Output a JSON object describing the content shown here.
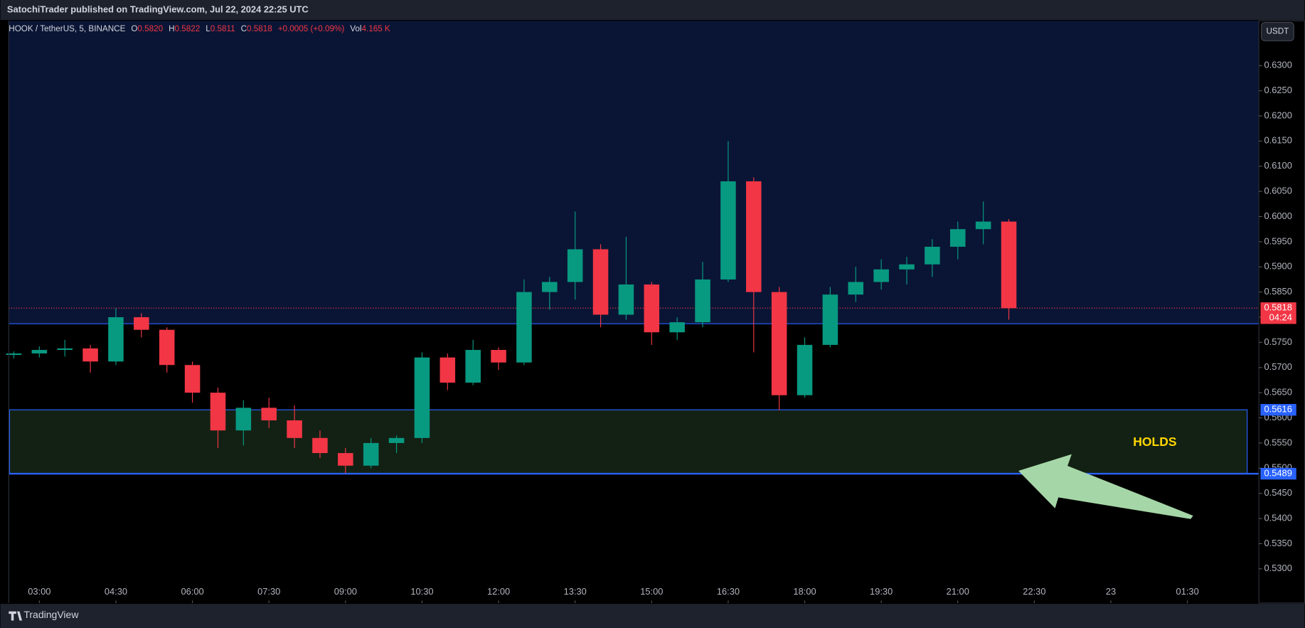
{
  "header": {
    "publisher": "SatochiTrader published on TradingView.com, Jul 22, 2024 22:25 UTC"
  },
  "footer": {
    "brand": "TradingView"
  },
  "currency_button": "USDT",
  "legend": {
    "symbol": "HOOK / TetherUS, 5, BINANCE",
    "o_label": "O",
    "open": "0.5820",
    "h_label": "H",
    "high": "0.5822",
    "l_label": "L",
    "low": "0.5811",
    "c_label": "C",
    "close": "0.5818",
    "change": "+0.0005 (+0.09%)",
    "vol_label": "Vol",
    "volume": "4.165 K"
  },
  "chart_data": {
    "type": "candlestick",
    "up_color": "#089981",
    "down_color": "#f23645",
    "x": [
      2.5,
      3.0,
      3.5,
      4.0,
      4.5,
      5.0,
      5.5,
      6.0,
      6.5,
      7.0,
      7.5,
      8.0,
      8.5,
      9.0,
      9.5,
      10.0,
      10.5,
      11.0,
      11.5,
      12.0,
      12.5,
      13.0,
      13.5,
      14.0,
      14.5,
      15.0,
      15.5,
      16.0,
      16.5,
      17.0,
      17.5,
      18.0,
      18.5,
      19.0,
      19.5,
      20.0,
      20.5,
      21.0,
      21.5,
      22.0
    ],
    "open": [
      0.5725,
      0.5728,
      0.5735,
      0.5738,
      0.5712,
      0.58,
      0.5775,
      0.5705,
      0.565,
      0.5575,
      0.562,
      0.5595,
      0.556,
      0.553,
      0.5505,
      0.555,
      0.556,
      0.572,
      0.567,
      0.5735,
      0.571,
      0.585,
      0.587,
      0.5935,
      0.5805,
      0.5865,
      0.577,
      0.579,
      0.5875,
      0.607,
      0.585,
      0.5645,
      0.5745,
      0.5845,
      0.587,
      0.5895,
      0.5905,
      0.594,
      0.5975,
      0.599
    ],
    "high": [
      0.5732,
      0.5742,
      0.5755,
      0.5745,
      0.5818,
      0.5808,
      0.578,
      0.5712,
      0.566,
      0.5635,
      0.564,
      0.5625,
      0.5575,
      0.554,
      0.556,
      0.5565,
      0.573,
      0.5728,
      0.5755,
      0.574,
      0.5875,
      0.588,
      0.601,
      0.5945,
      0.596,
      0.587,
      0.58,
      0.591,
      0.615,
      0.6078,
      0.586,
      0.576,
      0.586,
      0.59,
      0.5915,
      0.592,
      0.5955,
      0.599,
      0.603,
      0.5995
    ],
    "low": [
      0.5718,
      0.572,
      0.5722,
      0.569,
      0.5705,
      0.576,
      0.569,
      0.563,
      0.554,
      0.5545,
      0.558,
      0.554,
      0.552,
      0.549,
      0.55,
      0.553,
      0.555,
      0.5655,
      0.5665,
      0.5695,
      0.5705,
      0.5815,
      0.5835,
      0.578,
      0.5795,
      0.5745,
      0.5755,
      0.578,
      0.587,
      0.573,
      0.5615,
      0.564,
      0.574,
      0.583,
      0.5855,
      0.5865,
      0.588,
      0.5915,
      0.5945,
      0.5795
    ],
    "close": [
      0.5728,
      0.5735,
      0.5738,
      0.5712,
      0.58,
      0.5775,
      0.5705,
      0.565,
      0.5575,
      0.562,
      0.5595,
      0.556,
      0.553,
      0.5505,
      0.555,
      0.556,
      0.572,
      0.567,
      0.5735,
      0.571,
      0.585,
      0.587,
      0.5935,
      0.5805,
      0.5865,
      0.577,
      0.579,
      0.5875,
      0.607,
      0.585,
      0.5645,
      0.5745,
      0.5845,
      0.587,
      0.5895,
      0.5905,
      0.594,
      0.5975,
      0.599,
      0.5818
    ],
    "xlim": [
      2.4,
      26.9
    ],
    "xticks": [
      {
        "value": 3,
        "label": "03:00"
      },
      {
        "value": 4.5,
        "label": "04:30"
      },
      {
        "value": 6,
        "label": "06:00"
      },
      {
        "value": 7.5,
        "label": "07:30"
      },
      {
        "value": 9,
        "label": "09:00"
      },
      {
        "value": 10.5,
        "label": "10:30"
      },
      {
        "value": 12,
        "label": "12:00"
      },
      {
        "value": 13.5,
        "label": "13:30"
      },
      {
        "value": 15,
        "label": "15:00"
      },
      {
        "value": 16.5,
        "label": "16:30"
      },
      {
        "value": 18,
        "label": "18:00"
      },
      {
        "value": 19.5,
        "label": "19:30"
      },
      {
        "value": 21,
        "label": "21:00"
      },
      {
        "value": 22.5,
        "label": "22:30"
      },
      {
        "value": 24,
        "label": "23"
      },
      {
        "value": 25.5,
        "label": "01:30"
      }
    ],
    "ylim": [
      0.5232,
      0.6389
    ],
    "yticks": [
      {
        "value": 0.53,
        "label": "0.5300"
      },
      {
        "value": 0.535,
        "label": "0.5350"
      },
      {
        "value": 0.54,
        "label": "0.5400"
      },
      {
        "value": 0.545,
        "label": "0.5450"
      },
      {
        "value": 0.55,
        "label": "0.5500"
      },
      {
        "value": 0.555,
        "label": "0.5550"
      },
      {
        "value": 0.56,
        "label": "0.5600"
      },
      {
        "value": 0.565,
        "label": "0.5650"
      },
      {
        "value": 0.57,
        "label": "0.5700"
      },
      {
        "value": 0.575,
        "label": "0.5750"
      },
      {
        "value": 0.58,
        "label": "0.5800"
      },
      {
        "value": 0.585,
        "label": "0.5850"
      },
      {
        "value": 0.59,
        "label": "0.5900"
      },
      {
        "value": 0.595,
        "label": "0.5950"
      },
      {
        "value": 0.6,
        "label": "0.6000"
      },
      {
        "value": 0.605,
        "label": "0.6050"
      },
      {
        "value": 0.61,
        "label": "0.6100"
      },
      {
        "value": 0.615,
        "label": "0.6150"
      },
      {
        "value": 0.62,
        "label": "0.6200"
      },
      {
        "value": 0.625,
        "label": "0.6250"
      },
      {
        "value": 0.63,
        "label": "0.6300"
      }
    ],
    "level_line": 0.5787,
    "last_price": 0.5818,
    "countdown": "04:24",
    "zone": {
      "top": 0.5616,
      "bottom": 0.5489
    },
    "annotation": "HOLDS"
  }
}
